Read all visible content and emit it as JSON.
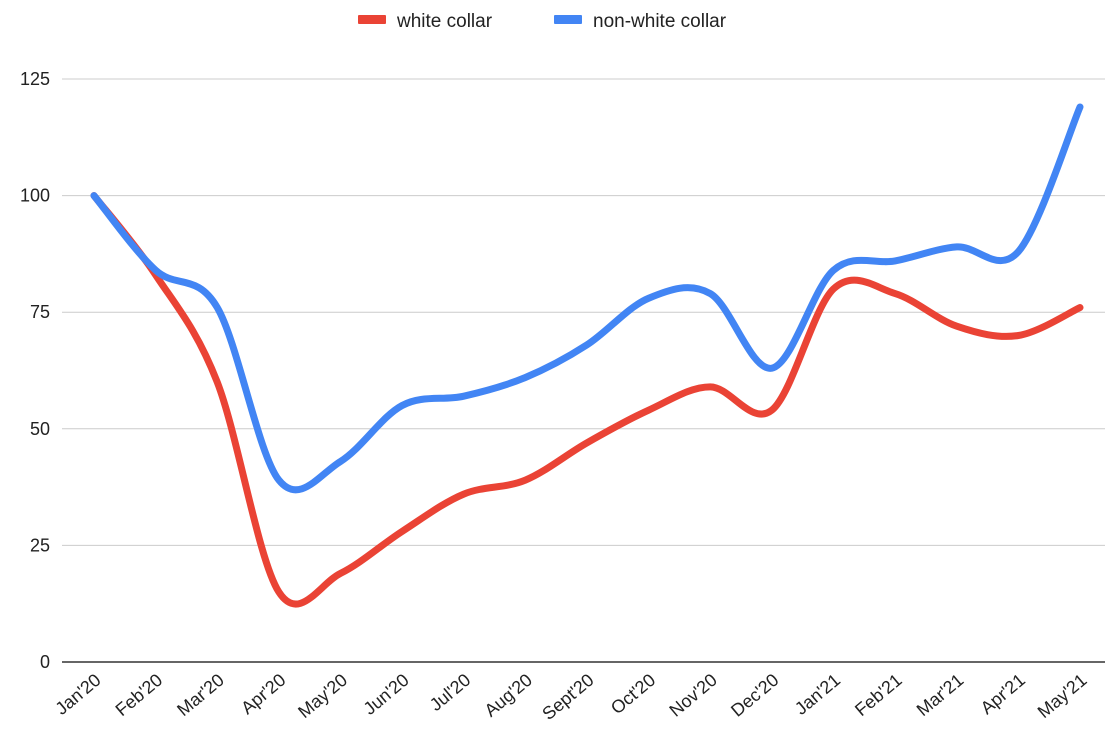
{
  "chart_data": {
    "type": "line",
    "title": "",
    "xlabel": "",
    "ylabel": "",
    "categories": [
      "Jan'20",
      "Feb'20",
      "Mar'20",
      "Apr'20",
      "May'20",
      "Jun'20",
      "Jul'20",
      "Aug'20",
      "Sept'20",
      "Oct'20",
      "Nov'20",
      "Dec'20",
      "Jan'21",
      "Feb'21",
      "Mar'21",
      "Apr'21",
      "May'21"
    ],
    "ylim": [
      0,
      125
    ],
    "yticks": [
      0,
      25,
      50,
      75,
      100,
      125
    ],
    "grid": true,
    "legend_position": "top-center",
    "series": [
      {
        "name": "white collar",
        "color": "#ea4335",
        "values": [
          100,
          83,
          60,
          15,
          19,
          28,
          36,
          39,
          47,
          54,
          59,
          54,
          80,
          79,
          72,
          70,
          76
        ]
      },
      {
        "name": "non-white collar",
        "color": "#4285f4",
        "values": [
          100,
          84,
          76,
          39,
          43,
          55,
          57,
          61,
          68,
          78,
          79,
          63,
          84,
          86,
          89,
          88,
          119
        ]
      }
    ]
  }
}
